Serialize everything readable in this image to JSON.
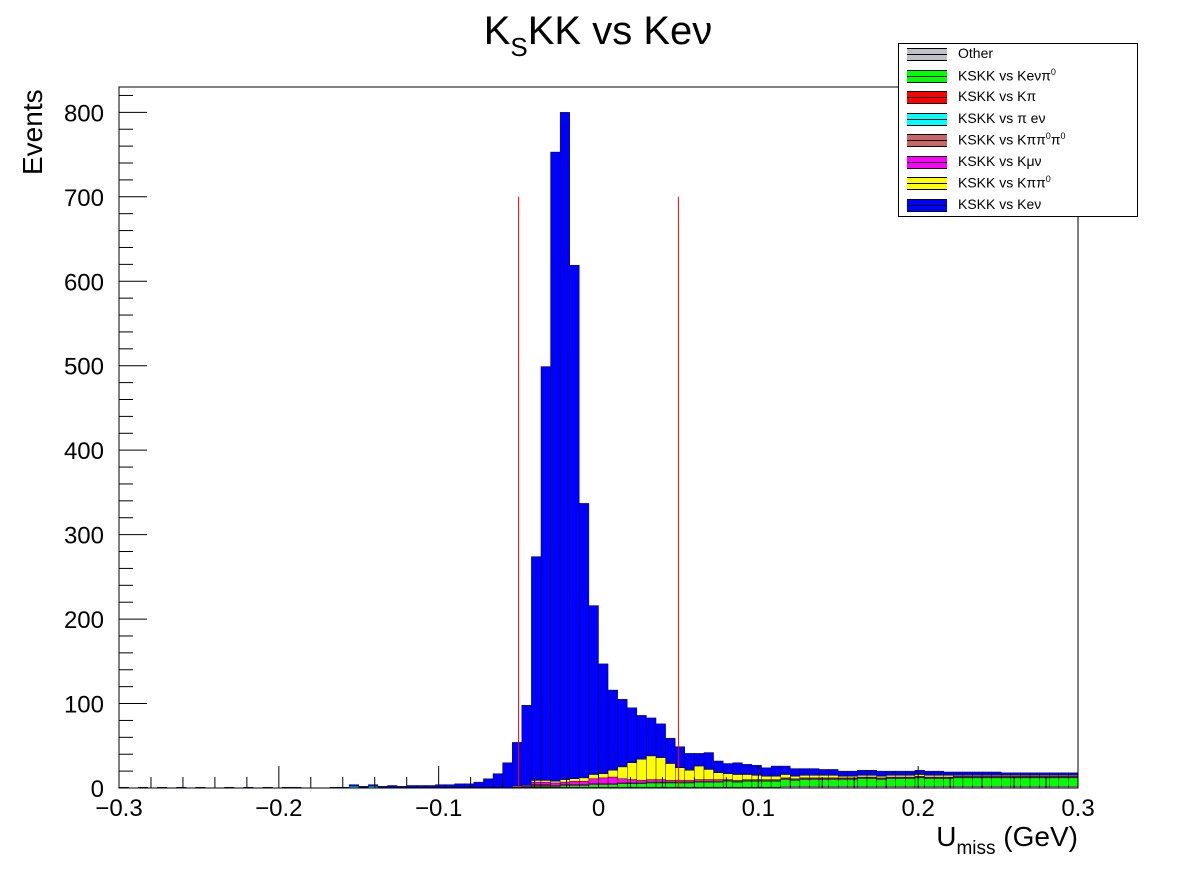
{
  "chart_data": {
    "type": "bar",
    "subtype": "stacked-histogram",
    "title": "K_S KK vs Keν",
    "xlabel": "U_miss (GeV)",
    "ylabel": "Events",
    "xlim": [
      -0.3,
      0.3
    ],
    "ylim": [
      0,
      830
    ],
    "bin_width": 0.006,
    "xticks": [
      "−0.3",
      "−0.2",
      "−0.1",
      "0",
      "0.1",
      "0.2",
      "0.3"
    ],
    "yticks": [
      "0",
      "100",
      "200",
      "300",
      "400",
      "500",
      "600",
      "700",
      "800"
    ],
    "vertical_lines": [
      {
        "x": -0.05,
        "y_top": 700,
        "color": "#ff0000"
      },
      {
        "x": 0.05,
        "y_top": 700,
        "color": "#ff0000"
      }
    ],
    "legend_position": "top-right",
    "stack_order_bottom_to_top": [
      "Other",
      "KSKK vs Keνπ0",
      "KSKK vs Kπ",
      "KSKK vs π eν",
      "KSKK vs Kππ0π0",
      "KSKK vs Kμν",
      "KSKK vs Kππ0",
      "KSKK vs Keν"
    ],
    "series": [
      {
        "name": "KSKK vs Keν",
        "color": "#0000ff",
        "values": [
          1,
          0,
          1,
          0,
          1,
          0,
          1,
          0,
          1,
          0,
          0,
          1,
          0,
          1,
          0,
          1,
          0,
          1,
          1,
          0,
          0,
          0,
          1,
          1,
          2,
          1,
          2,
          1,
          2,
          1,
          2,
          2,
          2,
          3,
          3,
          4,
          4,
          6,
          10,
          16,
          30,
          52,
          95,
          265,
          490,
          745,
          790,
          608,
          325,
          200,
          130,
          95,
          80,
          65,
          52,
          45,
          40,
          30,
          25,
          20,
          15,
          20,
          14,
          12,
          14,
          12,
          12,
          10,
          12,
          10,
          9,
          8,
          8,
          7,
          7,
          6,
          6,
          6,
          6,
          6,
          5,
          5,
          5,
          5,
          5,
          5,
          4,
          4,
          4,
          4,
          4,
          4,
          3,
          3,
          3,
          3,
          3,
          3,
          3,
          3
        ]
      },
      {
        "name": "KSKK vs Kππ0",
        "color": "#ffff00",
        "values": [
          0,
          0,
          0,
          0,
          0,
          0,
          0,
          0,
          0,
          0,
          0,
          0,
          0,
          0,
          0,
          0,
          0,
          0,
          0,
          0,
          0,
          0,
          0,
          0,
          0,
          0,
          0,
          0,
          0,
          0,
          0,
          0,
          0,
          0,
          0,
          0,
          0,
          0,
          0,
          0,
          0,
          1,
          1,
          2,
          2,
          2,
          3,
          3,
          4,
          5,
          5,
          8,
          14,
          20,
          25,
          28,
          26,
          20,
          15,
          12,
          16,
          12,
          8,
          7,
          7,
          6,
          5,
          4,
          4,
          4,
          3,
          3,
          3,
          3,
          3,
          2,
          2,
          2,
          2,
          2,
          2,
          2,
          2,
          2,
          2,
          2,
          2,
          1,
          1,
          1,
          1,
          1,
          1,
          1,
          1,
          1,
          1,
          1,
          1,
          1
        ]
      },
      {
        "name": "KSKK vs Kμν",
        "color": "#ff00ff",
        "values": [
          0,
          0,
          0,
          0,
          0,
          0,
          0,
          0,
          0,
          0,
          0,
          0,
          0,
          0,
          0,
          0,
          0,
          0,
          0,
          0,
          0,
          0,
          0,
          0,
          0,
          0,
          0,
          0,
          0,
          0,
          0,
          0,
          0,
          0,
          0,
          0,
          0,
          0,
          0,
          0,
          0,
          0,
          1,
          3,
          3,
          3,
          3,
          4,
          4,
          6,
          7,
          8,
          5,
          4,
          3,
          3,
          3,
          2,
          2,
          2,
          2,
          2,
          2,
          1,
          1,
          1,
          1,
          1,
          1,
          1,
          1,
          1,
          1,
          1,
          1,
          1,
          1,
          1,
          1,
          1,
          1,
          1,
          1,
          1,
          1,
          1,
          1,
          1,
          1,
          1,
          1,
          1,
          1,
          1,
          1,
          1,
          1,
          1,
          1,
          1
        ]
      },
      {
        "name": "KSKK vs Kππ0π0",
        "color": "#cc6666",
        "values": [
          0,
          0,
          0,
          0,
          0,
          0,
          0,
          0,
          0,
          0,
          0,
          0,
          0,
          0,
          0,
          0,
          0,
          0,
          0,
          0,
          0,
          0,
          0,
          0,
          0,
          0,
          0,
          0,
          0,
          0,
          0,
          0,
          0,
          0,
          0,
          0,
          0,
          0,
          0,
          0,
          0,
          1,
          1,
          1,
          1,
          1,
          1,
          1,
          1,
          1,
          1,
          1,
          1,
          1,
          1,
          1,
          1,
          1,
          1,
          1,
          1,
          1,
          1,
          1,
          1,
          1,
          1,
          1,
          1,
          1,
          1,
          1,
          1,
          1,
          1,
          1,
          1,
          1,
          1,
          1,
          1,
          1,
          1,
          1,
          1,
          1,
          1,
          1,
          1,
          1,
          1,
          1,
          1,
          1,
          1,
          1,
          1,
          1,
          1,
          1
        ]
      },
      {
        "name": "KSKK vs π eν",
        "color": "#00ffff",
        "values": [
          0,
          0,
          0,
          0,
          0,
          0,
          0,
          0,
          0,
          0,
          0,
          0,
          0,
          0,
          0,
          0,
          0,
          0,
          0,
          0,
          0,
          0,
          0,
          0,
          2,
          1,
          2,
          1,
          1,
          1,
          1,
          1,
          1,
          1,
          1,
          1,
          1,
          1,
          1,
          1,
          0,
          0,
          0,
          0,
          0,
          0,
          0,
          0,
          0,
          0,
          0,
          0,
          0,
          0,
          0,
          0,
          0,
          0,
          0,
          0,
          0,
          0,
          0,
          0,
          0,
          0,
          0,
          0,
          0,
          0,
          0,
          0,
          0,
          0,
          0,
          0,
          0,
          0,
          0,
          0,
          0,
          0,
          0,
          0,
          0,
          0,
          0,
          0,
          0,
          0,
          0,
          0,
          0,
          0,
          0,
          0,
          0,
          0,
          0,
          0
        ]
      },
      {
        "name": "KSKK vs Kπ",
        "color": "#ff0000",
        "values": [
          0,
          0,
          0,
          0,
          0,
          0,
          0,
          0,
          0,
          0,
          0,
          0,
          0,
          0,
          0,
          0,
          0,
          0,
          0,
          0,
          0,
          0,
          0,
          0,
          0,
          0,
          0,
          0,
          0,
          0,
          0,
          0,
          0,
          0,
          0,
          0,
          0,
          0,
          0,
          0,
          0,
          0,
          0,
          1,
          1,
          0,
          0,
          0,
          0,
          0,
          0,
          0,
          0,
          0,
          0,
          0,
          0,
          0,
          0,
          0,
          0,
          0,
          0,
          0,
          0,
          0,
          0,
          0,
          0,
          0,
          0,
          0,
          0,
          0,
          0,
          0,
          0,
          0,
          0,
          0,
          0,
          0,
          0,
          0,
          0,
          0,
          0,
          0,
          0,
          0,
          0,
          0,
          0,
          0,
          0,
          0,
          0,
          0,
          0,
          0
        ]
      },
      {
        "name": "KSKK vs Keνπ0",
        "color": "#00ff00",
        "values": [
          0,
          0,
          0,
          0,
          0,
          0,
          0,
          0,
          0,
          0,
          0,
          0,
          0,
          0,
          0,
          0,
          0,
          0,
          0,
          0,
          0,
          0,
          0,
          0,
          0,
          0,
          0,
          0,
          0,
          0,
          0,
          0,
          0,
          0,
          0,
          0,
          0,
          0,
          0,
          0,
          0,
          0,
          0,
          1,
          1,
          1,
          2,
          2,
          2,
          3,
          3,
          3,
          4,
          4,
          4,
          5,
          5,
          5,
          5,
          5,
          6,
          6,
          6,
          7,
          6,
          7,
          7,
          7,
          7,
          8,
          7,
          8,
          8,
          8,
          8,
          8,
          8,
          9,
          9,
          8,
          9,
          9,
          9,
          10,
          9,
          9,
          9,
          10,
          10,
          10,
          10,
          10,
          10,
          10,
          10,
          10,
          10,
          10,
          10,
          10
        ]
      },
      {
        "name": "Other",
        "color": "#c0c0c8",
        "values": [
          0,
          0,
          0,
          0,
          0,
          0,
          0,
          0,
          0,
          0,
          0,
          0,
          0,
          0,
          0,
          0,
          0,
          0,
          0,
          0,
          0,
          0,
          0,
          0,
          0,
          0,
          0,
          0,
          0,
          0,
          0,
          0,
          0,
          0,
          0,
          0,
          0,
          0,
          0,
          0,
          0,
          0,
          0,
          1,
          1,
          1,
          1,
          1,
          1,
          1,
          1,
          1,
          1,
          1,
          1,
          1,
          1,
          1,
          1,
          1,
          1,
          1,
          1,
          1,
          1,
          1,
          1,
          1,
          1,
          2,
          2,
          2,
          2,
          2,
          2,
          2,
          2,
          2,
          2,
          2,
          2,
          2,
          2,
          2,
          2,
          2,
          2,
          2,
          2,
          2,
          2,
          2,
          2,
          2,
          2,
          2,
          2,
          2,
          2,
          2
        ]
      }
    ]
  },
  "title": {
    "main": "K",
    "sub": "S",
    "rest": "KK vs Keν"
  },
  "axes": {
    "ylabel": "Events",
    "xlabel_main": "U",
    "xlabel_sub": "miss",
    "xlabel_rest": " (GeV)"
  },
  "legend": {
    "items": [
      {
        "label": "Other",
        "label_sup": "",
        "label_rest": "",
        "color": "#c0c0c8"
      },
      {
        "label": "KSKK vs Keνπ",
        "label_sup": "0",
        "label_rest": "",
        "color": "#00ff00"
      },
      {
        "label": "KSKK vs Kπ",
        "label_sup": "",
        "label_rest": "",
        "color": "#ff0000"
      },
      {
        "label": "KSKK vs π eν",
        "label_sup": "",
        "label_rest": "",
        "color": "#00ffff"
      },
      {
        "label": "KSKK vs Kππ",
        "label_sup": "0",
        "label_rest": "π",
        "label_sup2": "0",
        "color": "#cc6666"
      },
      {
        "label": "KSKK vs Kμν",
        "label_sup": "",
        "label_rest": "",
        "color": "#ff00ff"
      },
      {
        "label": "KSKK vs Kππ",
        "label_sup": "0",
        "label_rest": "",
        "color": "#ffff00"
      },
      {
        "label": "KSKK vs Keν",
        "label_sup": "",
        "label_rest": "",
        "color": "#0000ff"
      }
    ]
  }
}
